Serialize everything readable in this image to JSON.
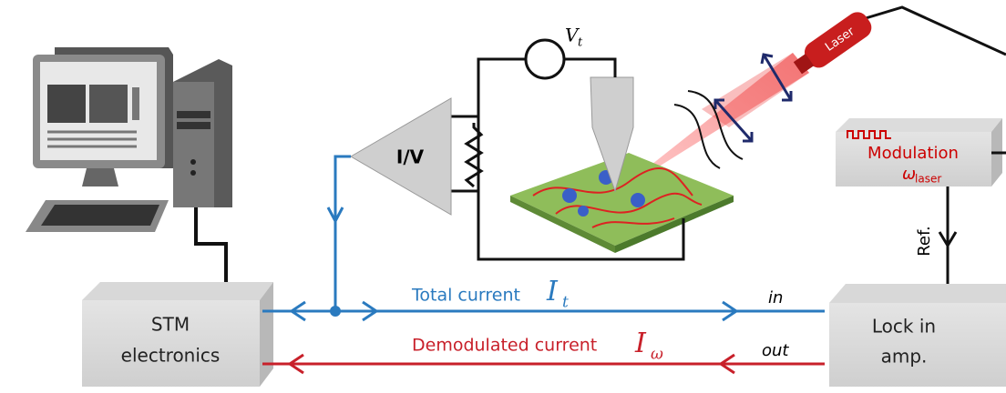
{
  "labels": {
    "vt": {
      "main": "V",
      "sub": "t"
    },
    "laser": "Laser",
    "iv": "I/V",
    "modulation": "Modulation",
    "omega_laser": {
      "main": "ω",
      "sub": "laser"
    },
    "ref": "Ref.",
    "total_current": "Total current",
    "it": {
      "main": "I",
      "sub": "t"
    },
    "in": "in",
    "stm": [
      "STM",
      "electronics"
    ],
    "lockin": [
      "Lock in",
      "amp."
    ],
    "demodulated_current": "Demodulated current",
    "iw": {
      "main": "I",
      "sub": "ω"
    },
    "out": "out"
  }
}
